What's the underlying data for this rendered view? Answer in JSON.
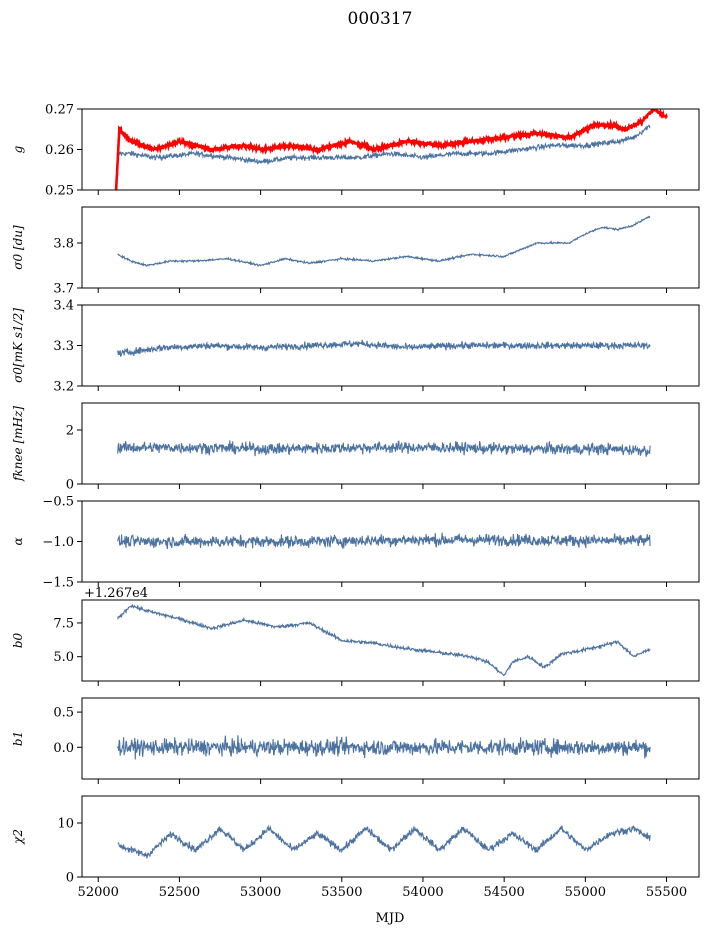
{
  "figure": {
    "title": "000317",
    "xlabel": "MJD",
    "offset_label": "+1.267e4"
  },
  "colors": {
    "series": "#4c72a0",
    "highlight": "#ff0000",
    "axis": "#000000"
  },
  "x_axis": {
    "xlim": [
      51900,
      55700
    ],
    "ticks": [
      52000,
      52500,
      53000,
      53500,
      54000,
      54500,
      55000,
      55500
    ],
    "tick_labels": [
      "52000",
      "52500",
      "53000",
      "53500",
      "54000",
      "54500",
      "55000",
      "55500"
    ]
  },
  "chart_data": [
    {
      "type": "line",
      "ylabel": "g",
      "ylim": [
        0.25,
        0.27
      ],
      "yticks": [
        0.25,
        0.26,
        0.27
      ],
      "ytick_labels": [
        "0.25",
        "0.26",
        "0.27"
      ],
      "series": [
        {
          "name": "",
          "color": "#4c72a0",
          "noise": 0.0006,
          "x": [
            52120,
            52200,
            52350,
            52600,
            52800,
            53000,
            53200,
            53400,
            53600,
            53800,
            54000,
            54200,
            54400,
            54600,
            54800,
            55000,
            55200,
            55300,
            55400
          ],
          "y": [
            0.259,
            0.259,
            0.258,
            0.259,
            0.258,
            0.257,
            0.258,
            0.258,
            0.258,
            0.259,
            0.258,
            0.259,
            0.259,
            0.26,
            0.261,
            0.261,
            0.262,
            0.263,
            0.266
          ]
        },
        {
          "name": "",
          "color": "#ff0000",
          "noise": 0.0004,
          "x": [
            52110,
            52130,
            52200,
            52350,
            52500,
            52700,
            52900,
            53000,
            53200,
            53350,
            53550,
            53700,
            53900,
            54100,
            54300,
            54500,
            54700,
            54900,
            55050,
            55150,
            55250,
            55350,
            55420,
            55500
          ],
          "y": [
            0.25,
            0.265,
            0.262,
            0.26,
            0.262,
            0.26,
            0.261,
            0.26,
            0.261,
            0.26,
            0.262,
            0.26,
            0.262,
            0.261,
            0.262,
            0.263,
            0.264,
            0.263,
            0.266,
            0.266,
            0.265,
            0.267,
            0.27,
            0.268
          ]
        }
      ]
    },
    {
      "type": "line",
      "ylabel": "σ0 [du]",
      "ylim": [
        3.7,
        3.88
      ],
      "yticks": [
        3.7,
        3.8
      ],
      "ytick_labels": [
        "3.7",
        "3.8"
      ],
      "series": [
        {
          "name": "",
          "color": "#4c72a0",
          "noise": 0.002,
          "x": [
            52120,
            52200,
            52300,
            52450,
            52600,
            52800,
            53000,
            53150,
            53300,
            53500,
            53700,
            53900,
            54100,
            54300,
            54500,
            54700,
            54900,
            55000,
            55100,
            55200,
            55300,
            55400
          ],
          "y": [
            3.775,
            3.76,
            3.75,
            3.76,
            3.76,
            3.765,
            3.75,
            3.765,
            3.755,
            3.765,
            3.76,
            3.77,
            3.76,
            3.775,
            3.77,
            3.8,
            3.8,
            3.82,
            3.835,
            3.83,
            3.84,
            3.86
          ]
        }
      ]
    },
    {
      "type": "line",
      "ylabel": "σ0[mK s1/2]",
      "ylim": [
        3.2,
        3.4
      ],
      "yticks": [
        3.2,
        3.3,
        3.4
      ],
      "ytick_labels": [
        "3.2",
        "3.3",
        "3.4"
      ],
      "series": [
        {
          "name": "",
          "color": "#4c72a0",
          "noise": 0.008,
          "x": [
            52120,
            52400,
            52700,
            53000,
            53300,
            53600,
            53900,
            54200,
            54500,
            54800,
            55100,
            55400
          ],
          "y": [
            3.28,
            3.295,
            3.3,
            3.295,
            3.3,
            3.305,
            3.295,
            3.3,
            3.3,
            3.3,
            3.3,
            3.3
          ]
        }
      ]
    },
    {
      "type": "line",
      "ylabel": "fknee [mHz]",
      "ylim": [
        0,
        3
      ],
      "yticks": [
        0,
        2
      ],
      "ytick_labels": [
        "0",
        "2"
      ],
      "series": [
        {
          "name": "",
          "color": "#4c72a0",
          "noise": 0.2,
          "x": [
            52120,
            52600,
            53100,
            53600,
            54100,
            54600,
            55100,
            55400
          ],
          "y": [
            1.35,
            1.35,
            1.3,
            1.35,
            1.35,
            1.3,
            1.3,
            1.25
          ]
        }
      ]
    },
    {
      "type": "line",
      "ylabel": "α",
      "ylim": [
        -1.5,
        -0.5
      ],
      "yticks": [
        -1.5,
        -1.0,
        -0.5
      ],
      "ytick_labels": [
        "−1.5",
        "−1.0",
        "−0.5"
      ],
      "series": [
        {
          "name": "",
          "color": "#4c72a0",
          "noise": 0.07,
          "x": [
            52120,
            52700,
            53300,
            53900,
            54500,
            55100,
            55400
          ],
          "y": [
            -1.0,
            -1.0,
            -1.0,
            -0.98,
            -0.98,
            -0.99,
            -0.99
          ]
        }
      ]
    },
    {
      "type": "line",
      "ylabel": "b0",
      "ylim": [
        3.2,
        9.2
      ],
      "yticks": [
        5.0,
        7.5
      ],
      "ytick_labels": [
        "5.0",
        "7.5"
      ],
      "series": [
        {
          "name": "",
          "color": "#4c72a0",
          "noise": 0.12,
          "x": [
            52120,
            52200,
            52300,
            52500,
            52700,
            52900,
            53100,
            53300,
            53500,
            53700,
            53900,
            54100,
            54300,
            54400,
            54500,
            54550,
            54650,
            54750,
            54850,
            54950,
            55100,
            55200,
            55300,
            55400
          ],
          "y": [
            7.8,
            8.8,
            8.4,
            7.8,
            7.1,
            7.7,
            7.2,
            7.5,
            6.2,
            6.0,
            5.6,
            5.3,
            5.0,
            4.6,
            3.6,
            4.6,
            5.0,
            4.2,
            5.2,
            5.4,
            5.8,
            6.1,
            5.0,
            5.6
          ]
        }
      ]
    },
    {
      "type": "line",
      "ylabel": "b1",
      "ylim": [
        -0.45,
        0.7
      ],
      "yticks": [
        0.0,
        0.5
      ],
      "ytick_labels": [
        "0.0",
        "0.5"
      ],
      "series": [
        {
          "name": "",
          "color": "#4c72a0",
          "noise": 0.11,
          "x": [
            52120,
            52700,
            53300,
            53900,
            54500,
            55100,
            55400
          ],
          "y": [
            0.0,
            0.0,
            0.0,
            0.0,
            0.0,
            0.0,
            0.0
          ]
        }
      ]
    },
    {
      "type": "line",
      "ylabel": "χ2",
      "ylim": [
        0,
        15
      ],
      "yticks": [
        0,
        10
      ],
      "ytick_labels": [
        "0",
        "10"
      ],
      "series": [
        {
          "name": "",
          "color": "#4c72a0",
          "noise": 0.6,
          "x": [
            52120,
            52200,
            52300,
            52450,
            52600,
            52750,
            52900,
            53050,
            53200,
            53350,
            53500,
            53650,
            53800,
            53950,
            54100,
            54250,
            54400,
            54550,
            54700,
            54850,
            55000,
            55150,
            55300,
            55400
          ],
          "y": [
            6,
            5,
            4,
            8,
            5,
            9,
            5,
            9,
            5,
            8,
            5,
            9,
            5,
            9,
            5,
            9,
            5,
            8,
            5,
            9,
            5,
            8,
            9,
            7
          ]
        }
      ]
    }
  ]
}
